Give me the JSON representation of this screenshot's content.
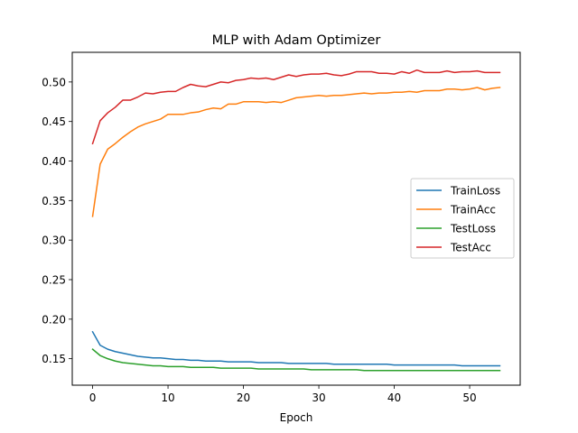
{
  "chart_data": {
    "type": "line",
    "title": "MLP with Adam Optimizer",
    "xlabel": "Epoch",
    "ylabel": "",
    "xlim": [
      -2.7,
      56.7
    ],
    "ylim": [
      0.1165,
      0.5375
    ],
    "xticks": [
      0,
      10,
      20,
      30,
      40,
      50
    ],
    "yticks": [
      0.15,
      0.2,
      0.25,
      0.3,
      0.35,
      0.4,
      0.45,
      0.5
    ],
    "ytick_labels": [
      "0.15",
      "0.20",
      "0.25",
      "0.30",
      "0.35",
      "0.40",
      "0.45",
      "0.50"
    ],
    "grid": false,
    "legend_position": "center-right",
    "x": [
      0,
      1,
      2,
      3,
      4,
      5,
      6,
      7,
      8,
      9,
      10,
      11,
      12,
      13,
      14,
      15,
      16,
      17,
      18,
      19,
      20,
      21,
      22,
      23,
      24,
      25,
      26,
      27,
      28,
      29,
      30,
      31,
      32,
      33,
      34,
      35,
      36,
      37,
      38,
      39,
      40,
      41,
      42,
      43,
      44,
      45,
      46,
      47,
      48,
      49,
      50,
      51,
      52,
      53,
      54
    ],
    "series": [
      {
        "name": "TrainLoss",
        "color": "#1f77b4",
        "values": [
          0.184,
          0.167,
          0.162,
          0.159,
          0.157,
          0.155,
          0.153,
          0.152,
          0.151,
          0.151,
          0.15,
          0.149,
          0.149,
          0.148,
          0.148,
          0.147,
          0.147,
          0.147,
          0.146,
          0.146,
          0.146,
          0.146,
          0.145,
          0.145,
          0.145,
          0.145,
          0.144,
          0.144,
          0.144,
          0.144,
          0.144,
          0.144,
          0.143,
          0.143,
          0.143,
          0.143,
          0.143,
          0.143,
          0.143,
          0.143,
          0.142,
          0.142,
          0.142,
          0.142,
          0.142,
          0.142,
          0.142,
          0.142,
          0.142,
          0.141,
          0.141,
          0.141,
          0.141,
          0.141,
          0.141
        ]
      },
      {
        "name": "TrainAcc",
        "color": "#ff7f0e",
        "values": [
          0.33,
          0.396,
          0.415,
          0.422,
          0.43,
          0.437,
          0.443,
          0.447,
          0.45,
          0.453,
          0.459,
          0.459,
          0.459,
          0.461,
          0.462,
          0.465,
          0.467,
          0.466,
          0.472,
          0.472,
          0.475,
          0.475,
          0.475,
          0.474,
          0.475,
          0.474,
          0.477,
          0.48,
          0.481,
          0.482,
          0.483,
          0.482,
          0.483,
          0.483,
          0.484,
          0.485,
          0.486,
          0.485,
          0.486,
          0.486,
          0.487,
          0.487,
          0.488,
          0.487,
          0.489,
          0.489,
          0.489,
          0.491,
          0.491,
          0.49,
          0.491,
          0.493,
          0.49,
          0.492,
          0.493
        ]
      },
      {
        "name": "TestLoss",
        "color": "#2ca02c",
        "values": [
          0.162,
          0.154,
          0.15,
          0.147,
          0.145,
          0.144,
          0.143,
          0.142,
          0.141,
          0.141,
          0.14,
          0.14,
          0.14,
          0.139,
          0.139,
          0.139,
          0.139,
          0.138,
          0.138,
          0.138,
          0.138,
          0.138,
          0.137,
          0.137,
          0.137,
          0.137,
          0.137,
          0.137,
          0.137,
          0.136,
          0.136,
          0.136,
          0.136,
          0.136,
          0.136,
          0.136,
          0.135,
          0.135,
          0.135,
          0.135,
          0.135,
          0.135,
          0.135,
          0.135,
          0.135,
          0.135,
          0.135,
          0.135,
          0.135,
          0.135,
          0.135,
          0.135,
          0.135,
          0.135,
          0.135
        ]
      },
      {
        "name": "TestAcc",
        "color": "#d62728",
        "values": [
          0.422,
          0.451,
          0.461,
          0.468,
          0.477,
          0.477,
          0.481,
          0.486,
          0.485,
          0.487,
          0.488,
          0.488,
          0.493,
          0.497,
          0.495,
          0.494,
          0.497,
          0.5,
          0.499,
          0.502,
          0.503,
          0.505,
          0.504,
          0.505,
          0.503,
          0.506,
          0.509,
          0.507,
          0.509,
          0.51,
          0.51,
          0.511,
          0.509,
          0.508,
          0.51,
          0.513,
          0.513,
          0.513,
          0.511,
          0.511,
          0.51,
          0.513,
          0.511,
          0.515,
          0.512,
          0.512,
          0.512,
          0.514,
          0.512,
          0.513,
          0.513,
          0.514,
          0.512,
          0.512,
          0.512
        ]
      }
    ]
  }
}
